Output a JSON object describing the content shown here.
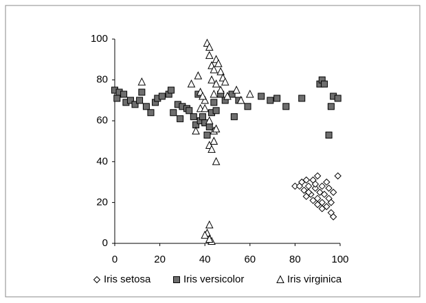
{
  "chart_data": {
    "type": "scatter",
    "xlim": [
      0,
      100
    ],
    "xticks": [
      0,
      20,
      40,
      60,
      80,
      100
    ],
    "ylim": [
      0,
      100
    ],
    "yticks": [
      0,
      20,
      40,
      60,
      80,
      100
    ],
    "legend": "bottom",
    "series": [
      {
        "name": "Iris setosa",
        "marker": "diamond",
        "color": "#ffffff",
        "x": [
          99,
          90,
          88,
          85,
          83,
          80,
          86,
          92,
          95,
          89,
          84,
          91,
          97,
          87,
          93,
          85,
          90,
          95,
          88,
          92,
          96,
          90,
          94,
          92,
          96,
          97,
          94,
          86,
          82,
          89
        ],
        "values": [
          33,
          33,
          31,
          31,
          30,
          28,
          28,
          28,
          27,
          27,
          26,
          25,
          25,
          24,
          24,
          23,
          22,
          22,
          21,
          20,
          20,
          19,
          18,
          17,
          15,
          13,
          30,
          25,
          28,
          29
        ]
      },
      {
        "name": "Iris versicolor",
        "marker": "square",
        "color": "#6e6e6e",
        "x": [
          0,
          1,
          2,
          4,
          5,
          7,
          9,
          11,
          12,
          14,
          16,
          18,
          19,
          21,
          24,
          25,
          26,
          28,
          29,
          30,
          32,
          33,
          35,
          36,
          37,
          38,
          39,
          40,
          41,
          42,
          43,
          44,
          45,
          47,
          49,
          52,
          53,
          55,
          59,
          65,
          69,
          72,
          76,
          83,
          91,
          92,
          93,
          95,
          96,
          97,
          99
        ],
        "values": [
          75,
          71,
          74,
          73,
          69,
          70,
          68,
          70,
          74,
          67,
          64,
          69,
          71,
          72,
          73,
          75,
          64,
          68,
          61,
          67,
          66,
          65,
          62,
          58,
          73,
          60,
          62,
          59,
          53,
          57,
          64,
          69,
          65,
          73,
          70,
          73,
          62,
          70,
          67,
          72,
          70,
          71,
          67,
          71,
          78,
          80,
          78,
          53,
          67,
          72,
          71
        ]
      },
      {
        "name": "Iris virginica",
        "marker": "triangle",
        "color": "#ffffff",
        "x": [
          12,
          34,
          37,
          38,
          40,
          41,
          42,
          42,
          43,
          44,
          45,
          46,
          47,
          43,
          45,
          47,
          48,
          49,
          44,
          38,
          40,
          39,
          42,
          44,
          45,
          42,
          43,
          44,
          45,
          36,
          54,
          56,
          60,
          42,
          41,
          40,
          43,
          42,
          50
        ],
        "values": [
          79,
          78,
          82,
          74,
          70,
          98,
          96,
          92,
          87,
          85,
          90,
          88,
          84,
          80,
          78,
          75,
          81,
          79,
          73,
          66,
          66,
          72,
          60,
          55,
          56,
          48,
          46,
          50,
          40,
          55,
          75,
          70,
          73,
          9,
          5,
          4,
          1,
          2,
          72
        ]
      }
    ]
  }
}
